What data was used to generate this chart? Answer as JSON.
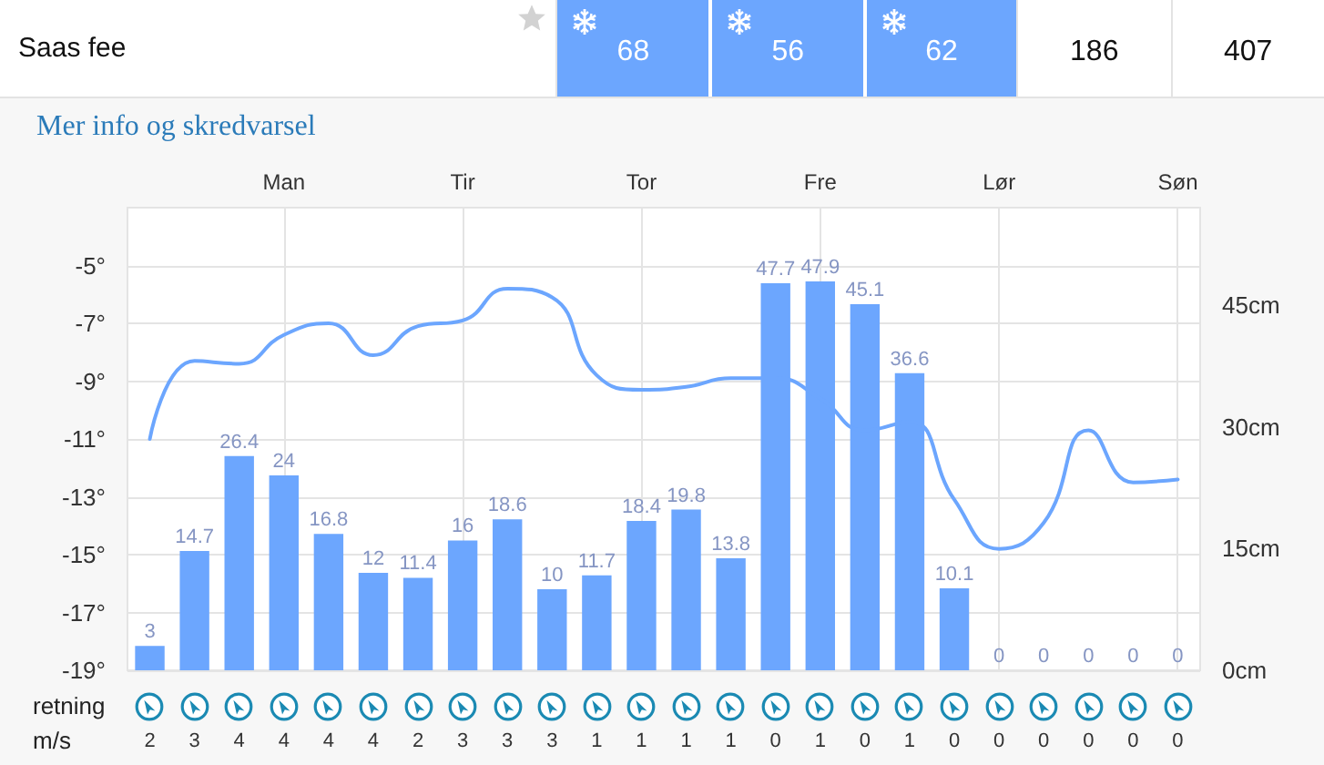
{
  "chart_data": [
    {
      "type": "other",
      "title": "Saas fee",
      "values": [
        68,
        56,
        62,
        186,
        407
      ],
      "colors": [
        "#6ca6fe",
        "#6ca6fe",
        "#6ca6fe",
        "#ffffff",
        "#ffffff"
      ],
      "data_labels": true,
      "annotations": [
        "Mer info og skredvarsel"
      ]
    },
    {
      "type": "bar",
      "categories": [
        null,
        null,
        null,
        "Man",
        null,
        null,
        null,
        "Tir",
        null,
        null,
        null,
        "Tor",
        null,
        null,
        null,
        "Fre",
        null,
        null,
        null,
        "Lør",
        null,
        null,
        null,
        "Søn"
      ],
      "series": [
        {
          "type": "bar",
          "axis": "y2",
          "color": "#6ca6fe",
          "values": [
            3,
            14.7,
            26.4,
            24,
            16.8,
            12,
            11.4,
            16,
            18.6,
            10,
            11.7,
            18.4,
            19.8,
            13.8,
            47.7,
            47.9,
            45.1,
            36.6,
            10.1,
            0,
            0,
            0,
            0,
            0
          ],
          "value_labels": [
            "3",
            "14.7",
            "26.4",
            "24",
            "16.8",
            "12",
            "11.4",
            "16",
            "18.6",
            "10",
            "11.7",
            "18.4",
            "19.8",
            "13.8",
            "47.7",
            "47.9",
            "45.1",
            "36.6",
            "10.1",
            "0",
            "0",
            "0",
            "0",
            "0"
          ]
        },
        {
          "type": "line",
          "color": "#6ca6fe",
          "marker": "none",
          "values": [
            -11.0,
            -8.3,
            -8.4,
            -7.4,
            -7.0,
            -8.1,
            -7.1,
            -6.9,
            -5.8,
            -6.1,
            -8.8,
            -9.3,
            -9.2,
            -8.9,
            -8.9,
            -9.6,
            -10.7,
            -10.4,
            -13.1,
            -14.8,
            -13.9,
            -10.7,
            -12.5,
            -12.4
          ]
        }
      ],
      "ylim": [
        -19,
        -3
      ],
      "yticks": [
        {
          "value": -19,
          "label": "-19°"
        },
        {
          "value": -17,
          "label": "-17°"
        },
        {
          "value": -15,
          "label": "-15°"
        },
        {
          "value": -13,
          "label": "-13°"
        },
        {
          "value": -11,
          "label": "-11°"
        },
        {
          "value": -9,
          "label": "-9°"
        },
        {
          "value": -7,
          "label": "-7°"
        },
        {
          "value": -5,
          "label": "-5°"
        }
      ],
      "y2lim": [
        0,
        57
      ],
      "y2ticks": [
        {
          "value": 0,
          "label": "0cm"
        },
        {
          "value": 15,
          "label": "15cm"
        },
        {
          "value": 30,
          "label": "30cm"
        },
        {
          "value": 45,
          "label": "45cm"
        }
      ],
      "grid": true
    },
    {
      "type": "other",
      "values": [
        2,
        3,
        4,
        4,
        4,
        4,
        2,
        3,
        3,
        3,
        1,
        1,
        1,
        1,
        0,
        1,
        0,
        1,
        0,
        0,
        0,
        0,
        0,
        0
      ],
      "data_labels": true,
      "annotations": [
        "retning",
        "m/s"
      ]
    }
  ]
}
